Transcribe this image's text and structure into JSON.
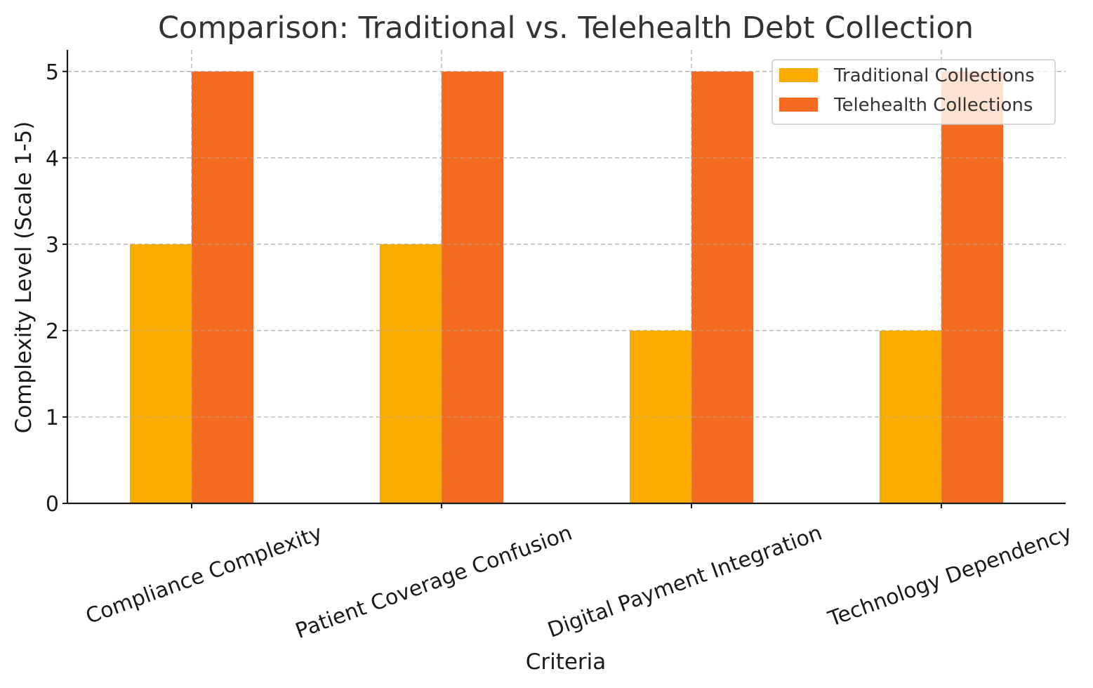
{
  "chart_data": {
    "type": "bar",
    "title": "Comparison: Traditional vs. Telehealth Debt Collection",
    "xlabel": "Criteria",
    "ylabel": "Complexity Level (Scale 1-5)",
    "categories": [
      "Compliance Complexity",
      "Patient Coverage Confusion",
      "Digital Payment Integration",
      "Technology Dependency"
    ],
    "series": [
      {
        "name": "Traditional Collections",
        "values": [
          3,
          3,
          2,
          2
        ],
        "color": "#FAAB00"
      },
      {
        "name": "Telehealth Collections",
        "values": [
          5,
          5,
          5,
          5
        ],
        "color": "#F26B21"
      }
    ],
    "ylim": [
      0,
      5.25
    ],
    "yticks": [
      0,
      1,
      2,
      3,
      4,
      5
    ],
    "grid": true,
    "legend": "top-right"
  }
}
